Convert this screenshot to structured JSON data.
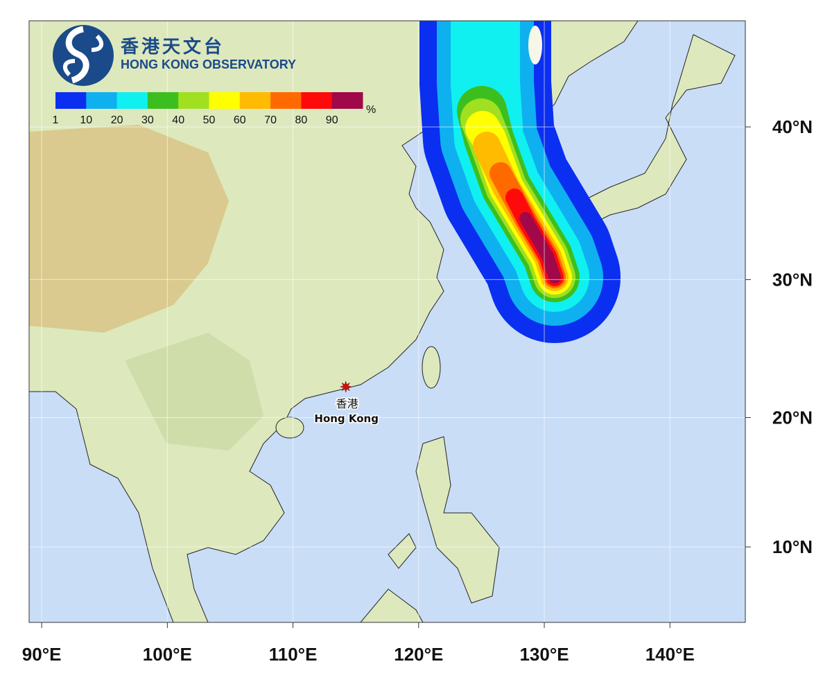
{
  "logo": {
    "name_zh": "香港天文台",
    "name_en": "HONG KONG OBSERVATORY"
  },
  "colorbar": {
    "unit": "%",
    "colors": [
      "#0a2ff0",
      "#0fb0f0",
      "#10f0f0",
      "#3cbf1e",
      "#a0e020",
      "#ffff00",
      "#ffbb00",
      "#ff6a00",
      "#ff0a0a",
      "#a0084a"
    ],
    "ticks": [
      1,
      10,
      20,
      30,
      40,
      50,
      60,
      70,
      80,
      90
    ]
  },
  "map": {
    "xlim": [
      89,
      146
    ],
    "ylim": [
      4,
      46.2
    ],
    "grid": true,
    "xticks": [
      {
        "value": 90,
        "label": "90°E"
      },
      {
        "value": 100,
        "label": "100°E"
      },
      {
        "value": 110,
        "label": "110°E"
      },
      {
        "value": 120,
        "label": "120°E"
      },
      {
        "value": 130,
        "label": "130°E"
      },
      {
        "value": 140,
        "label": "140°E"
      }
    ],
    "yticks": [
      {
        "value": 10,
        "label": "10°N"
      },
      {
        "value": 20,
        "label": "20°N"
      },
      {
        "value": 30,
        "label": "30°N"
      },
      {
        "value": 40,
        "label": "40°N"
      }
    ]
  },
  "marker": {
    "label_zh": "香港",
    "label_en": "Hong Kong",
    "lon": 114.2,
    "lat": 22.3
  }
}
